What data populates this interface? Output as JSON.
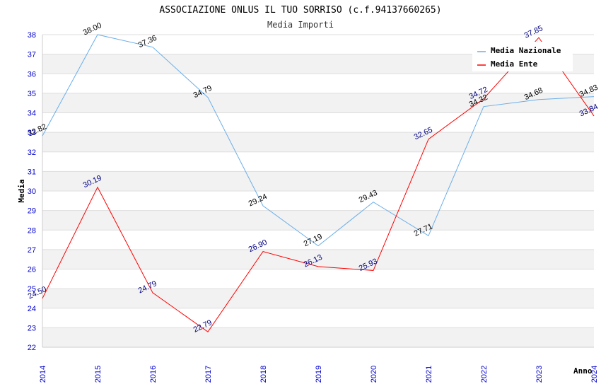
{
  "chart_data": {
    "type": "line",
    "title": "ASSOCIAZIONE ONLUS IL TUO SORRISO (c.f.94137660265)",
    "subtitle": "Media Importi",
    "xlabel": "Anno",
    "ylabel": "Media",
    "x": [
      "2014",
      "2015",
      "2016",
      "2017",
      "2018",
      "2019",
      "2020",
      "2021",
      "2022",
      "2023",
      "2024"
    ],
    "ylim": [
      22,
      38
    ],
    "yticks": [
      "22",
      "23",
      "24",
      "25",
      "26",
      "27",
      "28",
      "29",
      "30",
      "31",
      "32",
      "33",
      "34",
      "35",
      "36",
      "37",
      "38"
    ],
    "grid": true,
    "legend_position": "top-right",
    "series": [
      {
        "name": "Media Nazionale",
        "color": "#6aaee8",
        "label_color": "#000000",
        "values": [
          32.82,
          38.0,
          37.36,
          34.79,
          29.24,
          27.19,
          29.43,
          27.71,
          34.32,
          34.68,
          34.83
        ],
        "labels": [
          "32.82",
          "38.00",
          "37.36",
          "34.79",
          "29.24",
          "27.19",
          "29.43",
          "27.71",
          "34.32",
          "34.68",
          "34.83"
        ]
      },
      {
        "name": "Media Ente",
        "color": "#ff0000",
        "label_color": "#000080",
        "values": [
          24.5,
          30.19,
          24.79,
          22.79,
          26.9,
          26.13,
          25.93,
          32.65,
          34.72,
          37.85,
          33.84
        ],
        "labels": [
          "24.50",
          "30.19",
          "24.79",
          "22.79",
          "26.90",
          "26.13",
          "25.93",
          "32.65",
          "34.72",
          "37.85",
          "33.84"
        ]
      }
    ]
  }
}
